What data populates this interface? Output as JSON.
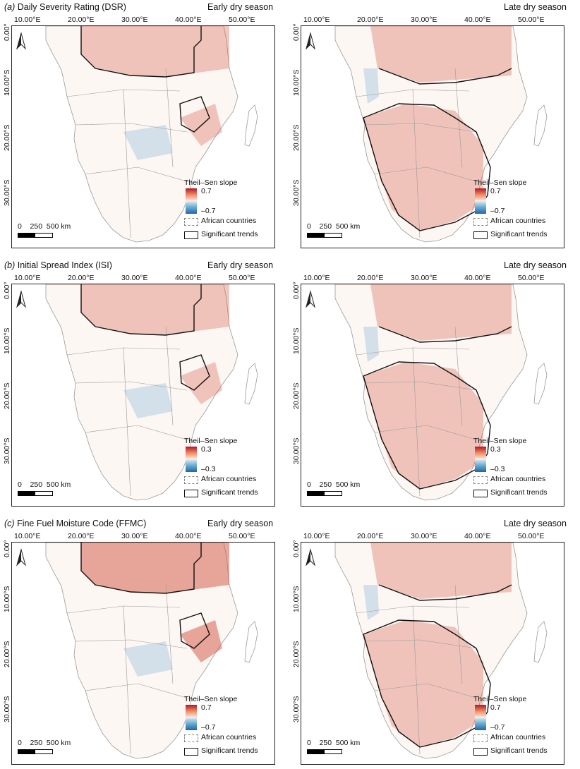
{
  "rows": [
    {
      "letter": "(a)",
      "title": "Daily Severity Rating (DSR)",
      "panels": [
        {
          "season": "Early dry season",
          "legend": {
            "title": "Theil–Sen slope",
            "max": "0.7",
            "min": "–0.7",
            "countries": "African countries",
            "significant": "Significant trends"
          }
        },
        {
          "season": "Late dry season",
          "legend": {
            "title": "Theil–Sen slope",
            "max": "0.7",
            "min": "–0.7",
            "countries": "African countries",
            "significant": "Significant trends"
          }
        }
      ]
    },
    {
      "letter": "(b)",
      "title": "Initial Spread Index (ISI)",
      "panels": [
        {
          "season": "Early dry season",
          "legend": {
            "title": "Theil–Sen slope",
            "max": "0.3",
            "min": "–0.3",
            "countries": "African countries",
            "significant": "Significant trends"
          }
        },
        {
          "season": "Late dry season",
          "legend": {
            "title": "Theil–Sen slope",
            "max": "0.3",
            "min": "–0.3",
            "countries": "African countries",
            "significant": "Significant trends"
          }
        }
      ]
    },
    {
      "letter": "(c)",
      "title": "Fine Fuel Moisture Code (FFMC)",
      "panels": [
        {
          "season": "Early dry season",
          "legend": {
            "title": "Theil–Sen slope",
            "max": "0.7",
            "min": "–0.7",
            "countries": "African countries",
            "significant": "Significant trends"
          }
        },
        {
          "season": "Late dry season",
          "legend": {
            "title": "Theil–Sen slope",
            "max": "0.7",
            "min": "–0.7",
            "countries": "African countries",
            "significant": "Significant trends"
          }
        }
      ]
    }
  ],
  "axes": {
    "lon": [
      "10.00°E",
      "20.00°E",
      "30.00°E",
      "40.00°E",
      "50.00°E"
    ],
    "lat": [
      "0.00°",
      "10.00°S",
      "20.00°S",
      "30.00°S"
    ]
  },
  "scalebar": {
    "label": "0    250  500 km"
  },
  "colors": {
    "positive": "#d6604d",
    "negative": "#4393c3",
    "significant_outline": "#111111",
    "country_border": "#999999"
  },
  "icons": {
    "north_arrow": "north-arrow-icon"
  }
}
